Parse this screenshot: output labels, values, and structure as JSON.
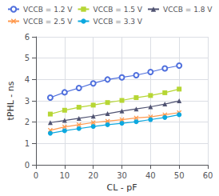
{
  "chart_data": {
    "type": "line",
    "xlabel": "CL - pF",
    "ylabel": "tPHL - ns",
    "xlim": [
      0,
      60
    ],
    "ylim": [
      0,
      6
    ],
    "xticks": [
      0,
      10,
      20,
      30,
      40,
      50,
      60
    ],
    "yticks": [
      0,
      1,
      2,
      3,
      4,
      5,
      6
    ],
    "grid": true,
    "legend": "upper left",
    "x": [
      5,
      10,
      15,
      20,
      25,
      30,
      35,
      40,
      45,
      50
    ],
    "series": [
      {
        "name": "VCCB = 1.2 V",
        "marker": "circle-open",
        "values": [
          3.15,
          3.4,
          3.6,
          3.82,
          4.0,
          4.1,
          4.2,
          4.35,
          4.52,
          4.65
        ]
      },
      {
        "name": "VCCB = 1.5 V",
        "marker": "square",
        "values": [
          2.38,
          2.56,
          2.7,
          2.8,
          2.92,
          3.02,
          3.15,
          3.25,
          3.38,
          3.55
        ]
      },
      {
        "name": "VCCB = 1.8 V",
        "marker": "triangle",
        "values": [
          1.98,
          2.08,
          2.18,
          2.28,
          2.4,
          2.52,
          2.62,
          2.72,
          2.85,
          3.0
        ]
      },
      {
        "name": "VCCB = 2.5 V",
        "marker": "x",
        "values": [
          1.62,
          1.78,
          1.88,
          1.98,
          2.05,
          2.12,
          2.2,
          2.25,
          2.35,
          2.45
        ]
      },
      {
        "name": "VCCB = 3.3 V",
        "marker": "circle",
        "values": [
          1.48,
          1.6,
          1.7,
          1.8,
          1.88,
          1.95,
          2.02,
          2.12,
          2.22,
          2.35
        ]
      }
    ]
  }
}
